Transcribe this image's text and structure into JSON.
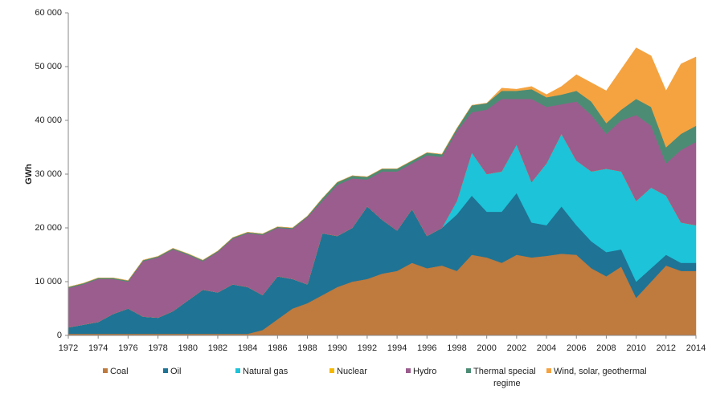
{
  "chart_data": {
    "type": "stacked_area",
    "y_label": "GWh",
    "x": [
      1972,
      1973,
      1974,
      1975,
      1976,
      1977,
      1978,
      1979,
      1980,
      1981,
      1982,
      1983,
      1984,
      1985,
      1986,
      1987,
      1988,
      1989,
      1990,
      1991,
      1992,
      1993,
      1994,
      1995,
      1996,
      1997,
      1998,
      1999,
      2000,
      2001,
      2002,
      2003,
      2004,
      2005,
      2006,
      2007,
      2008,
      2009,
      2010,
      2011,
      2012,
      2013,
      2014
    ],
    "xlim": [
      1972,
      2014
    ],
    "xticks": [
      1972,
      1974,
      1976,
      1978,
      1980,
      1982,
      1984,
      1986,
      1988,
      1990,
      1992,
      1994,
      1996,
      1998,
      2000,
      2002,
      2004,
      2006,
      2008,
      2010,
      2012,
      2014
    ],
    "ylim": [
      0,
      60000
    ],
    "yticks": [
      0,
      {
        "value": 10000,
        "label": "10 000"
      },
      {
        "value": 20000,
        "label": "20 000"
      },
      {
        "value": 30000,
        "label": "30 000"
      },
      {
        "value": 40000,
        "label": "40 000"
      },
      {
        "value": 50000,
        "label": "50 000"
      },
      {
        "value": 60000,
        "label": "60 000"
      }
    ],
    "grid": false,
    "legend": "bottom",
    "series": [
      {
        "name": "Coal",
        "color": "#bf7a3e",
        "values": [
          300,
          300,
          300,
          300,
          300,
          300,
          300,
          300,
          300,
          300,
          300,
          300,
          300,
          1000,
          3000,
          5000,
          6000,
          7500,
          9000,
          10000,
          10500,
          11500,
          12000,
          13500,
          12500,
          13000,
          12000,
          15000,
          14500,
          13500,
          15000,
          14500,
          14800,
          15200,
          15000,
          12500,
          11000,
          12800,
          7000,
          10000,
          13000,
          12000,
          12000
        ]
      },
      {
        "name": "Oil",
        "color": "#1f7394",
        "values": [
          1200,
          1700,
          2200,
          3700,
          4700,
          3200,
          3000,
          4200,
          6200,
          8200,
          7700,
          9200,
          8700,
          6500,
          8000,
          5500,
          3500,
          11500,
          9500,
          10000,
          13500,
          10000,
          7500,
          10000,
          6000,
          7000,
          10500,
          11000,
          8500,
          9500,
          11500,
          6500,
          5700,
          8800,
          5500,
          5000,
          4500,
          3200,
          3000,
          2500,
          2000,
          1500,
          1500
        ]
      },
      {
        "name": "Natural gas",
        "color": "#1cc3d9",
        "values": [
          0,
          0,
          0,
          0,
          0,
          0,
          0,
          0,
          0,
          0,
          0,
          0,
          0,
          0,
          0,
          0,
          0,
          0,
          0,
          0,
          0,
          0,
          0,
          0,
          0,
          0,
          2500,
          8000,
          7000,
          7500,
          9000,
          7500,
          11500,
          13500,
          12000,
          13000,
          15500,
          14500,
          15000,
          15000,
          11000,
          7500,
          7000
        ]
      },
      {
        "name": "Nuclear",
        "color": "#f5b800",
        "values": [
          0,
          0,
          0,
          0,
          0,
          0,
          0,
          0,
          0,
          0,
          0,
          0,
          0,
          0,
          0,
          0,
          0,
          0,
          0,
          0,
          0,
          0,
          0,
          0,
          0,
          0,
          0,
          0,
          0,
          0,
          0,
          0,
          0,
          0,
          0,
          0,
          0,
          0,
          0,
          0,
          0,
          0,
          0
        ]
      },
      {
        "name": "Hydro",
        "color": "#9b5d8d",
        "values": [
          7300,
          7500,
          8000,
          6500,
          5000,
          10300,
          11200,
          11500,
          8500,
          5300,
          7500,
          8500,
          10000,
          11200,
          9000,
          9300,
          12500,
          6000,
          9500,
          9200,
          5000,
          9000,
          11000,
          8500,
          15000,
          13200,
          13000,
          7500,
          12000,
          13500,
          8500,
          15500,
          10500,
          5500,
          11000,
          10500,
          6500,
          9500,
          16000,
          11500,
          6000,
          13500,
          15500
        ]
      },
      {
        "name": "Thermal special regime",
        "color": "#4c8c74",
        "values": [
          200,
          200,
          200,
          200,
          200,
          200,
          200,
          200,
          200,
          200,
          200,
          200,
          200,
          200,
          200,
          200,
          200,
          500,
          500,
          500,
          500,
          500,
          500,
          500,
          500,
          500,
          500,
          1300,
          1200,
          1500,
          1500,
          1800,
          1800,
          1800,
          2000,
          2500,
          2000,
          2000,
          3000,
          3500,
          3000,
          3000,
          3000
        ]
      },
      {
        "name": "Wind, solar, geothermal",
        "color": "#f4a340",
        "values": [
          0,
          0,
          0,
          0,
          0,
          0,
          0,
          0,
          0,
          0,
          0,
          0,
          0,
          0,
          0,
          0,
          0,
          0,
          0,
          0,
          0,
          0,
          0,
          0,
          0,
          0,
          0,
          0,
          0,
          500,
          300,
          500,
          500,
          1500,
          3000,
          3500,
          6000,
          7500,
          9500,
          9500,
          10500,
          13000,
          12800
        ]
      }
    ]
  }
}
